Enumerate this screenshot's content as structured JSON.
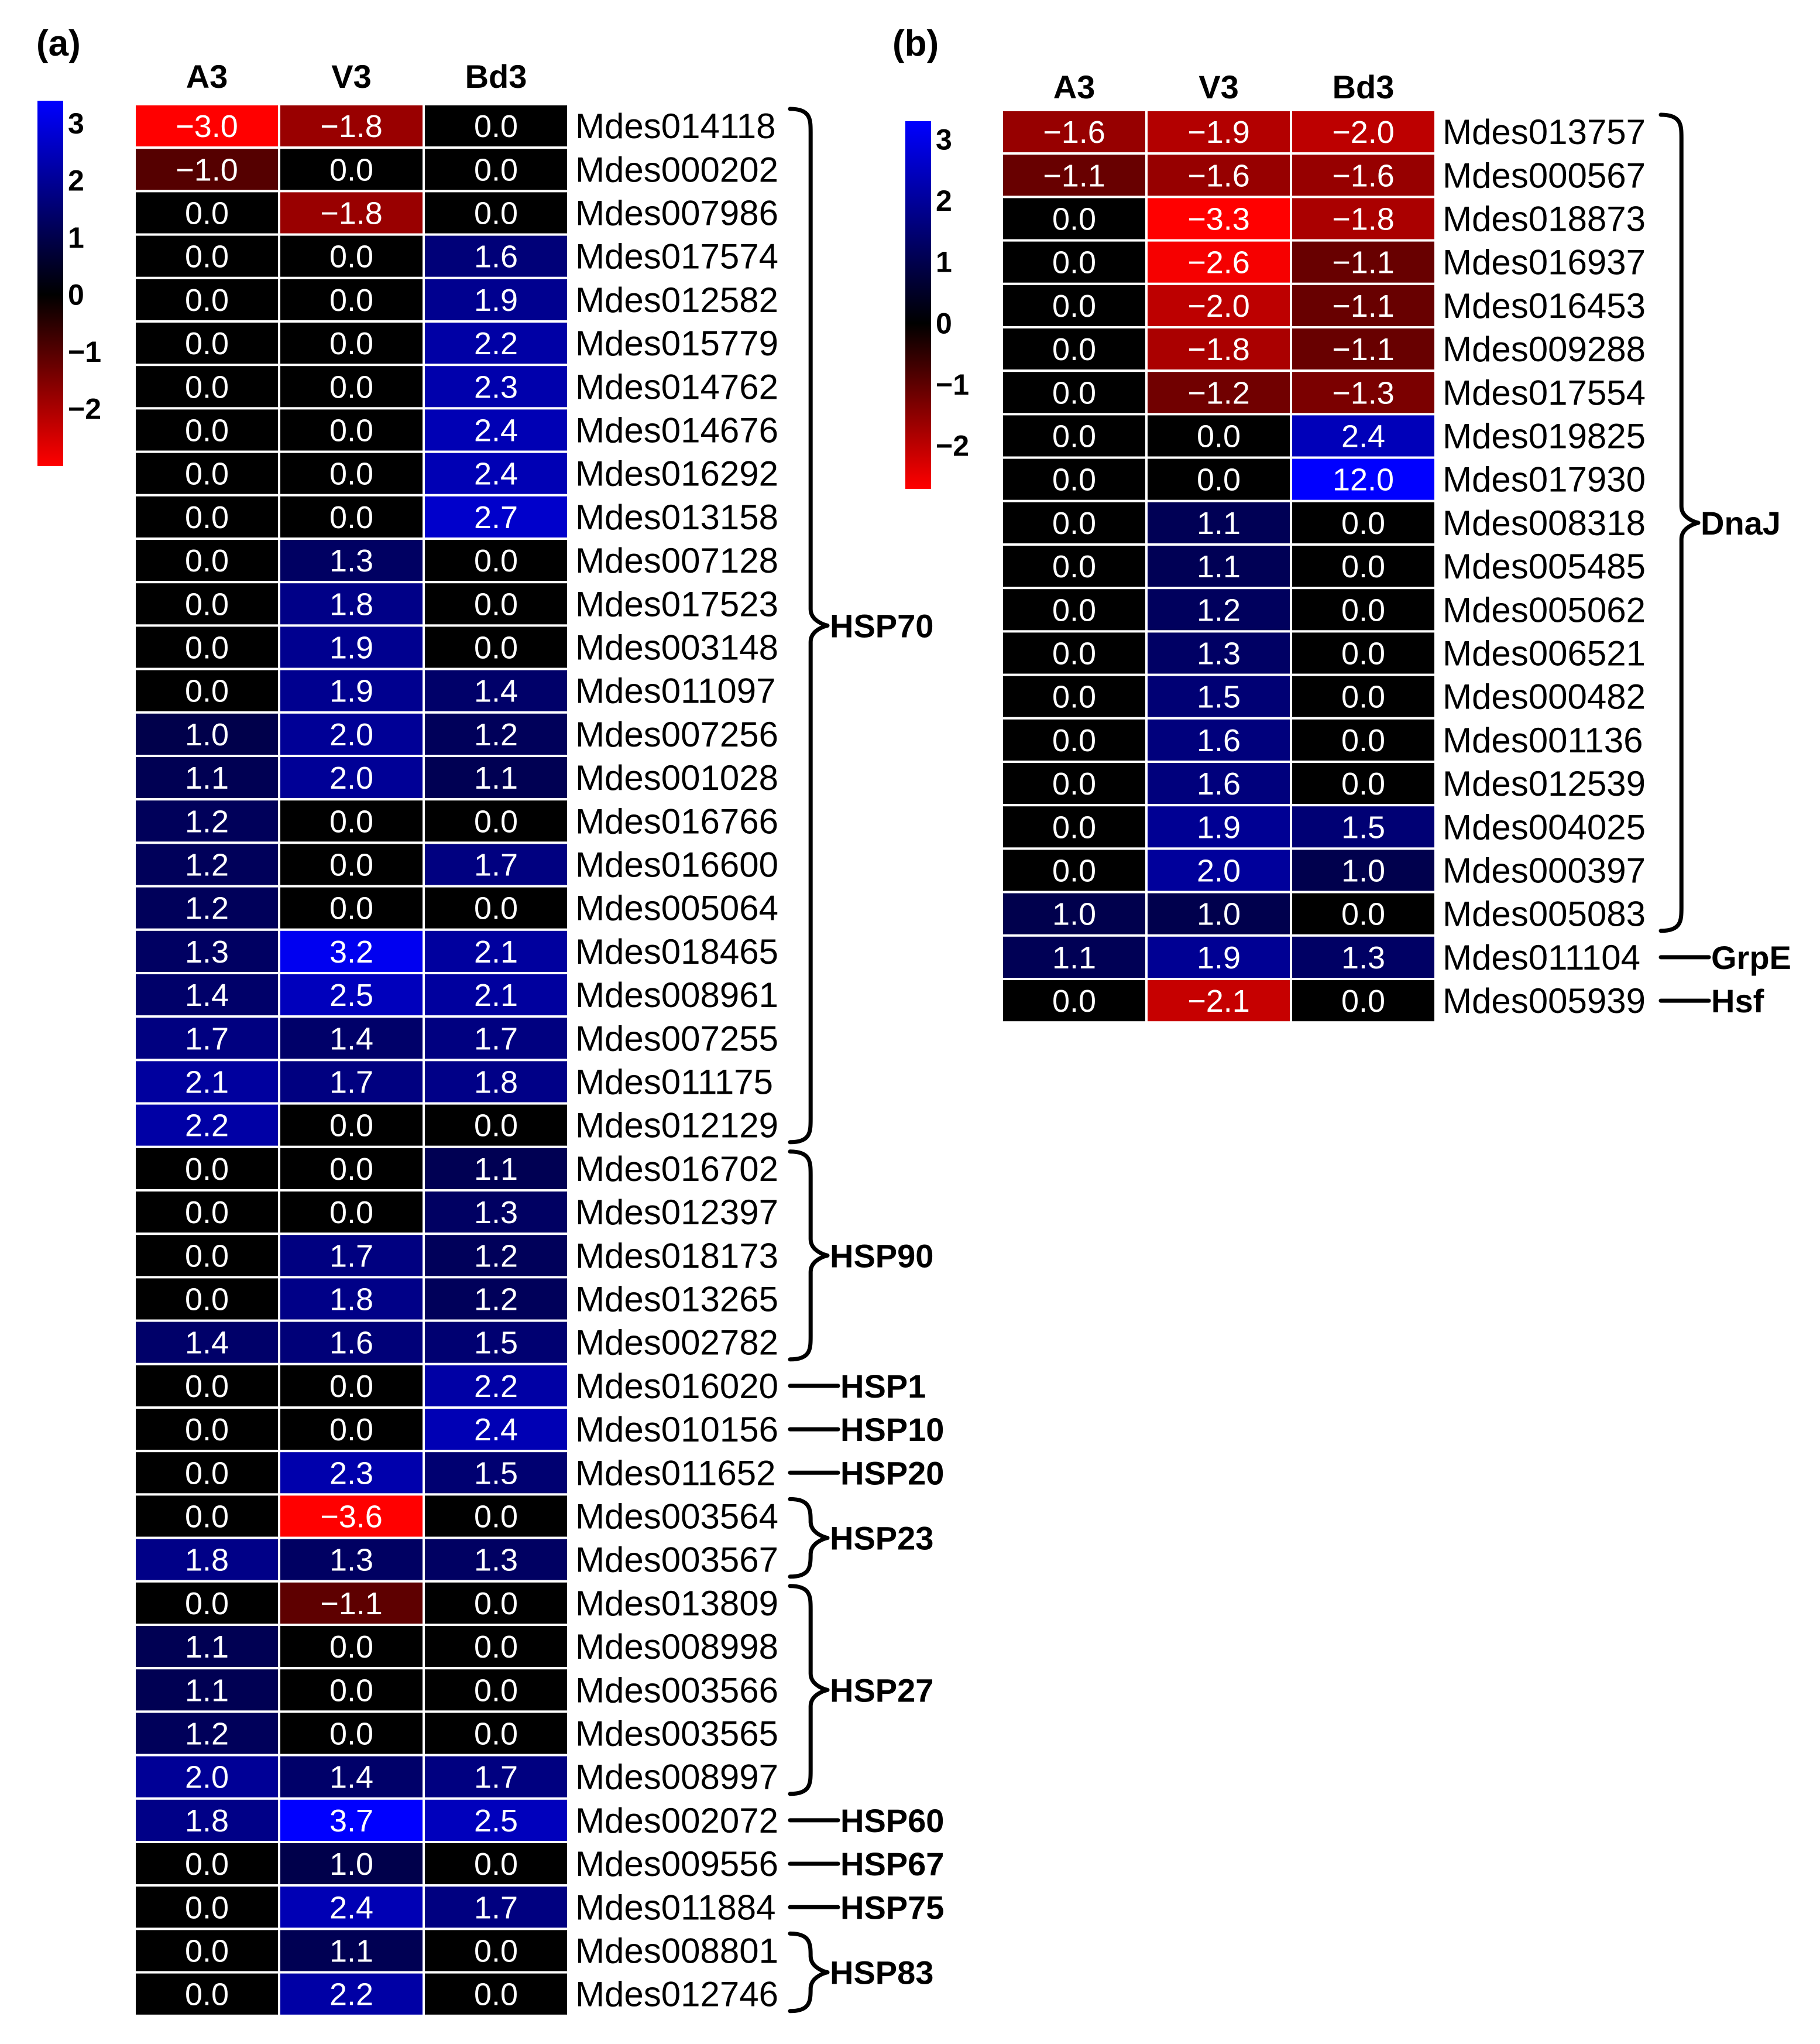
{
  "chart_data": [
    {
      "type": "heatmap",
      "panel_label": "(a)",
      "columns": [
        "A3",
        "V3",
        "Bd3"
      ],
      "rows": [
        {
          "gene": "Mdes014118",
          "values": [
            -3.0,
            -1.8,
            0.0
          ]
        },
        {
          "gene": "Mdes000202",
          "values": [
            -1.0,
            0.0,
            0.0
          ]
        },
        {
          "gene": "Mdes007986",
          "values": [
            0.0,
            -1.8,
            0.0
          ]
        },
        {
          "gene": "Mdes017574",
          "values": [
            0.0,
            0.0,
            1.6
          ]
        },
        {
          "gene": "Mdes012582",
          "values": [
            0.0,
            0.0,
            1.9
          ]
        },
        {
          "gene": "Mdes015779",
          "values": [
            0.0,
            0.0,
            2.2
          ]
        },
        {
          "gene": "Mdes014762",
          "values": [
            0.0,
            0.0,
            2.3
          ]
        },
        {
          "gene": "Mdes014676",
          "values": [
            0.0,
            0.0,
            2.4
          ]
        },
        {
          "gene": "Mdes016292",
          "values": [
            0.0,
            0.0,
            2.4
          ]
        },
        {
          "gene": "Mdes013158",
          "values": [
            0.0,
            0.0,
            2.7
          ]
        },
        {
          "gene": "Mdes007128",
          "values": [
            0.0,
            1.3,
            0.0
          ]
        },
        {
          "gene": "Mdes017523",
          "values": [
            0.0,
            1.8,
            0.0
          ]
        },
        {
          "gene": "Mdes003148",
          "values": [
            0.0,
            1.9,
            0.0
          ]
        },
        {
          "gene": "Mdes011097",
          "values": [
            0.0,
            1.9,
            1.4
          ]
        },
        {
          "gene": "Mdes007256",
          "values": [
            1.0,
            2.0,
            1.2
          ]
        },
        {
          "gene": "Mdes001028",
          "values": [
            1.1,
            2.0,
            1.1
          ]
        },
        {
          "gene": "Mdes016766",
          "values": [
            1.2,
            0.0,
            0.0
          ]
        },
        {
          "gene": "Mdes016600",
          "values": [
            1.2,
            0.0,
            1.7
          ]
        },
        {
          "gene": "Mdes005064",
          "values": [
            1.2,
            0.0,
            0.0
          ]
        },
        {
          "gene": "Mdes018465",
          "values": [
            1.3,
            3.2,
            2.1
          ]
        },
        {
          "gene": "Mdes008961",
          "values": [
            1.4,
            2.5,
            2.1
          ]
        },
        {
          "gene": "Mdes007255",
          "values": [
            1.7,
            1.4,
            1.7
          ]
        },
        {
          "gene": "Mdes011175",
          "values": [
            2.1,
            1.7,
            1.8
          ]
        },
        {
          "gene": "Mdes012129",
          "values": [
            2.2,
            0.0,
            0.0
          ]
        },
        {
          "gene": "Mdes016702",
          "values": [
            0.0,
            0.0,
            1.1
          ]
        },
        {
          "gene": "Mdes012397",
          "values": [
            0.0,
            0.0,
            1.3
          ]
        },
        {
          "gene": "Mdes018173",
          "values": [
            0.0,
            1.7,
            1.2
          ]
        },
        {
          "gene": "Mdes013265",
          "values": [
            0.0,
            1.8,
            1.2
          ]
        },
        {
          "gene": "Mdes002782",
          "values": [
            1.4,
            1.6,
            1.5
          ]
        },
        {
          "gene": "Mdes016020",
          "values": [
            0.0,
            0.0,
            2.2
          ]
        },
        {
          "gene": "Mdes010156",
          "values": [
            0.0,
            0.0,
            2.4
          ]
        },
        {
          "gene": "Mdes011652",
          "values": [
            0.0,
            2.3,
            1.5
          ]
        },
        {
          "gene": "Mdes003564",
          "values": [
            0.0,
            -3.6,
            0.0
          ]
        },
        {
          "gene": "Mdes003567",
          "values": [
            1.8,
            1.3,
            1.3
          ]
        },
        {
          "gene": "Mdes013809",
          "values": [
            0.0,
            -1.1,
            0.0
          ]
        },
        {
          "gene": "Mdes008998",
          "values": [
            1.1,
            0.0,
            0.0
          ]
        },
        {
          "gene": "Mdes003566",
          "values": [
            1.1,
            0.0,
            0.0
          ]
        },
        {
          "gene": "Mdes003565",
          "values": [
            1.2,
            0.0,
            0.0
          ]
        },
        {
          "gene": "Mdes008997",
          "values": [
            2.0,
            1.4,
            1.7
          ]
        },
        {
          "gene": "Mdes002072",
          "values": [
            1.8,
            3.7,
            2.5
          ]
        },
        {
          "gene": "Mdes009556",
          "values": [
            0.0,
            1.0,
            0.0
          ]
        },
        {
          "gene": "Mdes011884",
          "values": [
            0.0,
            2.4,
            1.7
          ]
        },
        {
          "gene": "Mdes008801",
          "values": [
            0.0,
            1.1,
            0.0
          ]
        },
        {
          "gene": "Mdes012746",
          "values": [
            0.0,
            2.2,
            0.0
          ]
        }
      ],
      "groups": [
        {
          "label": "HSP70",
          "first_row": 0,
          "last_row": 23
        },
        {
          "label": "HSP90",
          "first_row": 24,
          "last_row": 28
        },
        {
          "label": "HSP1",
          "first_row": 29,
          "last_row": 29
        },
        {
          "label": "HSP10",
          "first_row": 30,
          "last_row": 30
        },
        {
          "label": "HSP20",
          "first_row": 31,
          "last_row": 31
        },
        {
          "label": "HSP23",
          "first_row": 32,
          "last_row": 33
        },
        {
          "label": "HSP27",
          "first_row": 34,
          "last_row": 38
        },
        {
          "label": "HSP60",
          "first_row": 39,
          "last_row": 39
        },
        {
          "label": "HSP67",
          "first_row": 40,
          "last_row": 40
        },
        {
          "label": "HSP75",
          "first_row": 41,
          "last_row": 41
        },
        {
          "label": "HSP83",
          "first_row": 42,
          "last_row": 43
        }
      ],
      "color_scale": {
        "ticks": [
          "3",
          "2",
          "1",
          "0",
          "−1",
          "−2"
        ],
        "tick_values": [
          3,
          2,
          1,
          0,
          -1,
          -2
        ],
        "range": [
          -3,
          3.4
        ],
        "colors": {
          "negative": "#ff0000",
          "zero": "#000000",
          "positive": "#0000ff"
        }
      }
    },
    {
      "type": "heatmap",
      "panel_label": "(b)",
      "columns": [
        "A3",
        "V3",
        "Bd3"
      ],
      "rows": [
        {
          "gene": "Mdes013757",
          "values": [
            -1.6,
            -1.9,
            -2.0
          ]
        },
        {
          "gene": "Mdes000567",
          "values": [
            -1.1,
            -1.6,
            -1.6
          ]
        },
        {
          "gene": "Mdes018873",
          "values": [
            0.0,
            -3.3,
            -1.8
          ]
        },
        {
          "gene": "Mdes016937",
          "values": [
            0.0,
            -2.6,
            -1.1
          ]
        },
        {
          "gene": "Mdes016453",
          "values": [
            0.0,
            -2.0,
            -1.1
          ]
        },
        {
          "gene": "Mdes009288",
          "values": [
            0.0,
            -1.8,
            -1.1
          ]
        },
        {
          "gene": "Mdes017554",
          "values": [
            0.0,
            -1.2,
            -1.3
          ]
        },
        {
          "gene": "Mdes019825",
          "values": [
            0.0,
            0.0,
            2.4
          ]
        },
        {
          "gene": "Mdes017930",
          "values": [
            0.0,
            0.0,
            12.0
          ]
        },
        {
          "gene": "Mdes008318",
          "values": [
            0.0,
            1.1,
            0.0
          ]
        },
        {
          "gene": "Mdes005485",
          "values": [
            0.0,
            1.1,
            0.0
          ]
        },
        {
          "gene": "Mdes005062",
          "values": [
            0.0,
            1.2,
            0.0
          ]
        },
        {
          "gene": "Mdes006521",
          "values": [
            0.0,
            1.3,
            0.0
          ]
        },
        {
          "gene": "Mdes000482",
          "values": [
            0.0,
            1.5,
            0.0
          ]
        },
        {
          "gene": "Mdes001136",
          "values": [
            0.0,
            1.6,
            0.0
          ]
        },
        {
          "gene": "Mdes012539",
          "values": [
            0.0,
            1.6,
            0.0
          ]
        },
        {
          "gene": "Mdes004025",
          "values": [
            0.0,
            1.9,
            1.5
          ]
        },
        {
          "gene": "Mdes000397",
          "values": [
            0.0,
            2.0,
            1.0
          ]
        },
        {
          "gene": "Mdes005083",
          "values": [
            1.0,
            1.0,
            0.0
          ]
        },
        {
          "gene": "Mdes011104",
          "values": [
            1.1,
            1.9,
            1.3
          ]
        },
        {
          "gene": "Mdes005939",
          "values": [
            0.0,
            -2.1,
            0.0
          ]
        }
      ],
      "groups": [
        {
          "label": "DnaJ",
          "first_row": 0,
          "last_row": 18
        },
        {
          "label": "GrpE",
          "first_row": 19,
          "last_row": 19
        },
        {
          "label": "Hsf",
          "first_row": 20,
          "last_row": 20
        }
      ],
      "color_scale": {
        "ticks": [
          "3",
          "2",
          "1",
          "0",
          "−1",
          "−2"
        ],
        "tick_values": [
          3,
          2,
          1,
          0,
          -1,
          -2
        ],
        "range": [
          -2.7,
          3.3
        ],
        "colors": {
          "negative": "#ff0000",
          "zero": "#000000",
          "positive": "#0000ff"
        }
      }
    }
  ]
}
